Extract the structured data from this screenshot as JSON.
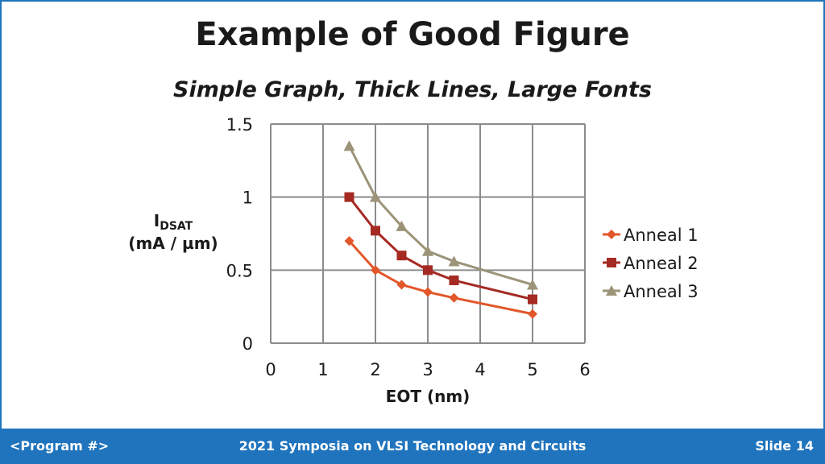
{
  "slide": {
    "title": "Example of Good Figure",
    "subtitle": "Simple Graph, Thick Lines, Large Fonts"
  },
  "footer": {
    "left": "<Program #>",
    "center": "2021 Symposia on VLSI Technology and Circuits",
    "right": "Slide 14"
  },
  "chart_data": {
    "type": "line",
    "title": "",
    "xlabel": "EOT (nm)",
    "ylabel": {
      "main": "I",
      "sub": "DSAT",
      "unit": "(mA / µm)"
    },
    "xlim": [
      0,
      6
    ],
    "ylim": [
      0,
      1.5
    ],
    "xticks": [
      "0",
      "1",
      "2",
      "3",
      "4",
      "5",
      "6"
    ],
    "yticks": [
      "0",
      "0.5",
      "1",
      "1.5"
    ],
    "grid": true,
    "legend": "right",
    "series": [
      {
        "name": "Anneal 1",
        "marker": "diamond",
        "color": "#e2572a",
        "x": [
          1.5,
          2,
          2.5,
          3,
          3.5,
          5
        ],
        "y": [
          0.7,
          0.5,
          0.4,
          0.35,
          0.31,
          0.2
        ]
      },
      {
        "name": "Anneal 2",
        "marker": "square",
        "color": "#a52a23",
        "x": [
          1.5,
          2,
          2.5,
          3,
          3.5,
          5
        ],
        "y": [
          1.0,
          0.77,
          0.6,
          0.5,
          0.43,
          0.3
        ]
      },
      {
        "name": "Anneal 3",
        "marker": "triangle",
        "color": "#9c9378",
        "x": [
          1.5,
          2,
          2.5,
          3,
          3.5,
          5
        ],
        "y": [
          1.35,
          1.0,
          0.8,
          0.63,
          0.56,
          0.4
        ]
      }
    ]
  }
}
